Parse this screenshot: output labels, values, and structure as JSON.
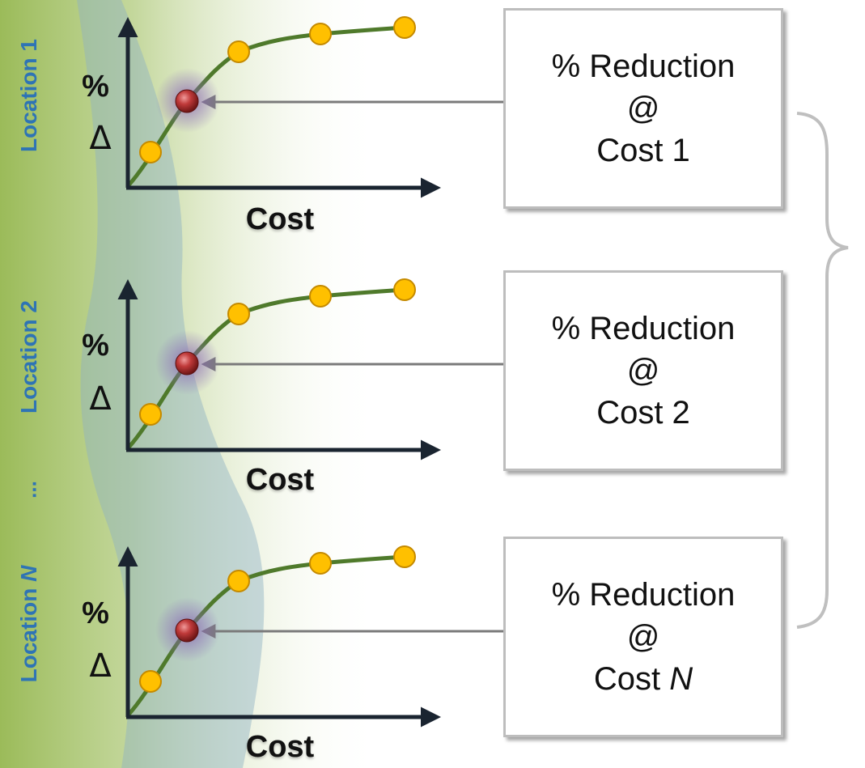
{
  "rows": [
    {
      "location": {
        "prefix": "Location ",
        "var": "1",
        "italic": false
      },
      "y_label": "%",
      "y_symbol": "Δ",
      "x_label": "Cost",
      "box": {
        "line1": "% Reduction",
        "line2": "@",
        "line3_prefix": "Cost ",
        "line3_var": "1",
        "italic": false
      }
    },
    {
      "location": {
        "prefix": "Location ",
        "var": "2",
        "italic": false
      },
      "y_label": "%",
      "y_symbol": "Δ",
      "x_label": "Cost",
      "box": {
        "line1": "% Reduction",
        "line2": "@",
        "line3_prefix": "Cost ",
        "line3_var": "2",
        "italic": false
      }
    },
    {
      "location": {
        "prefix": "Location ",
        "var": "N",
        "italic": true
      },
      "y_label": "%",
      "y_symbol": "Δ",
      "x_label": "Cost",
      "box": {
        "line1": "% Reduction",
        "line2": "@",
        "line3_prefix": "Cost ",
        "line3_var": "N",
        "italic": true
      }
    }
  ],
  "ellipsis": "...",
  "colors": {
    "band_green": "#9bbb59",
    "band_blue": "#8fb1c4",
    "curve": "#4f7a2b",
    "point_yellow": "#ffc000",
    "point_red": "#b03030",
    "label_blue": "#2e74b5",
    "box_border": "#bdbdbd",
    "brace": "#bfbfbf"
  }
}
